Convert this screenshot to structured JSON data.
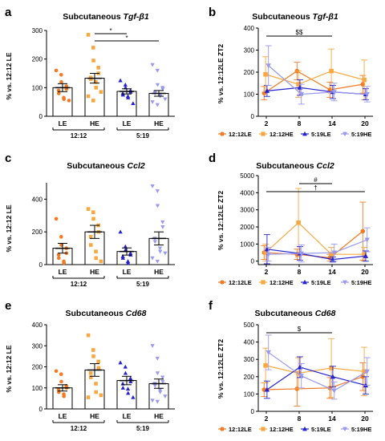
{
  "colors": {
    "LE1212": "#F47920",
    "HE1212": "#F7A840",
    "LE519": "#2323D0",
    "HE519": "#9999F0"
  },
  "panels": [
    {
      "id": "a",
      "letter": "a",
      "title_prefix": "Subcutaneous ",
      "title_gene": "Tgf-β1",
      "ylabel": "% vs. 12:12 LE"
    },
    {
      "id": "b",
      "letter": "b",
      "title_prefix": "Subcutaneous ",
      "title_gene": "Tgf-β1",
      "ylabel": "% vs. 12:12LE ZT2"
    },
    {
      "id": "c",
      "letter": "c",
      "title_prefix": "Subcutaneous ",
      "title_gene": "Ccl2",
      "ylabel": "% vs. 12:12 LE"
    },
    {
      "id": "d",
      "letter": "d",
      "title_prefix": "Subcutaneous ",
      "title_gene": "Ccl2",
      "ylabel": "% vs. 12:12LE ZT2"
    },
    {
      "id": "e",
      "letter": "e",
      "title_prefix": "Subcutaneous ",
      "title_gene": "Cd68",
      "ylabel": "% vs. 12:12 LE"
    },
    {
      "id": "f",
      "letter": "f",
      "title_prefix": "Subcutaneous ",
      "title_gene": "Cd68",
      "ylabel": "% vs. 12:12LE ZT2"
    }
  ],
  "chart_data": [
    {
      "panel": "a",
      "type": "bar",
      "categories": [
        "LE",
        "HE",
        "LE",
        "HE"
      ],
      "groups": [
        "12:12",
        "5:19"
      ],
      "ylim": [
        0,
        300
      ],
      "yticks": [
        0,
        100,
        200,
        300
      ],
      "means": [
        100,
        133,
        87,
        80
      ],
      "sem": [
        14,
        17,
        9,
        10
      ],
      "points": [
        [
          160,
          145,
          120,
          105,
          95,
          90,
          80,
          65,
          60,
          55
        ],
        [
          285,
          240,
          195,
          170,
          150,
          135,
          130,
          120,
          100,
          85,
          70,
          55
        ],
        [
          125,
          110,
          100,
          90,
          85,
          80,
          75,
          70,
          65,
          45
        ],
        [
          180,
          160,
          110,
          100,
          95,
          85,
          80,
          75,
          70,
          60,
          50,
          40
        ]
      ],
      "significance": [
        {
          "from": 1,
          "to": 2,
          "label": "*"
        },
        {
          "from": 1,
          "to": 3,
          "label": "*"
        }
      ]
    },
    {
      "panel": "b",
      "type": "line",
      "x": [
        2,
        8,
        14,
        20
      ],
      "ylim": [
        0,
        400
      ],
      "yticks": [
        0,
        100,
        200,
        300,
        400
      ],
      "series": [
        {
          "name": "12:12LE",
          "values": [
            105,
            205,
            120,
            145
          ],
          "err": [
            30,
            40,
            35,
            40
          ]
        },
        {
          "name": "12:12HE",
          "values": [
            190,
            145,
            205,
            165
          ],
          "err": [
            80,
            60,
            100,
            90
          ]
        },
        {
          "name": "5:19LE",
          "values": [
            115,
            130,
            110,
            100
          ],
          "err": [
            25,
            35,
            30,
            25
          ]
        },
        {
          "name": "5:19HE",
          "values": [
            230,
            100,
            110,
            100
          ],
          "err": [
            90,
            45,
            40,
            35
          ]
        }
      ],
      "significance": [
        {
          "from": 2,
          "to": 14,
          "label": "$$"
        }
      ]
    },
    {
      "panel": "c",
      "type": "bar",
      "categories": [
        "LE",
        "HE",
        "LE",
        "HE"
      ],
      "groups": [
        "12:12",
        "5:19"
      ],
      "ylim": [
        0,
        500
      ],
      "yticks": [
        0,
        200,
        400
      ],
      "means": [
        100,
        200,
        80,
        160
      ],
      "sem": [
        30,
        40,
        22,
        40
      ],
      "points": [
        [
          280,
          170,
          120,
          100,
          70,
          60,
          40,
          20,
          10
        ],
        [
          340,
          320,
          280,
          240,
          200,
          170,
          120,
          80,
          40,
          20
        ],
        [
          200,
          110,
          90,
          70,
          60,
          50,
          40,
          20,
          10
        ],
        [
          480,
          450,
          360,
          260,
          230,
          160,
          140,
          100,
          80,
          70,
          40,
          20
        ]
      ],
      "significance": []
    },
    {
      "panel": "d",
      "type": "line",
      "x": [
        2,
        8,
        14,
        20
      ],
      "ylim": [
        -200,
        5000
      ],
      "yticks": [
        0,
        1000,
        2000,
        3000,
        4000,
        5000
      ],
      "series": [
        {
          "name": "12:12LE",
          "values": [
            500,
            400,
            200,
            1750
          ],
          "err": [
            400,
            300,
            200,
            1700
          ]
        },
        {
          "name": "12:12HE",
          "values": [
            500,
            2250,
            400,
            400
          ],
          "err": [
            500,
            2000,
            400,
            400
          ]
        },
        {
          "name": "5:19LE",
          "values": [
            700,
            450,
            100,
            300
          ],
          "err": [
            850,
            400,
            150,
            300
          ]
        },
        {
          "name": "5:19HE",
          "values": [
            400,
            450,
            500,
            1250
          ],
          "err": [
            400,
            500,
            500,
            700
          ]
        }
      ],
      "significance": [
        {
          "from": 8,
          "to": 14,
          "label": "#"
        },
        {
          "from": 2,
          "to": 20,
          "label": "†"
        }
      ]
    },
    {
      "panel": "e",
      "type": "bar",
      "categories": [
        "LE",
        "HE",
        "LE",
        "HE"
      ],
      "groups": [
        "12:12",
        "5:19"
      ],
      "ylim": [
        0,
        400
      ],
      "yticks": [
        0,
        100,
        200,
        300,
        400
      ],
      "means": [
        100,
        185,
        135,
        120
      ],
      "sem": [
        15,
        30,
        20,
        22
      ],
      "points": [
        [
          180,
          165,
          130,
          110,
          100,
          90,
          80,
          70,
          60
        ],
        [
          350,
          280,
          250,
          225,
          195,
          170,
          150,
          120,
          80,
          65,
          55
        ],
        [
          220,
          200,
          170,
          145,
          130,
          120,
          100,
          95,
          75,
          55
        ],
        [
          300,
          240,
          170,
          150,
          130,
          120,
          110,
          90,
          80,
          60,
          40,
          35
        ]
      ],
      "significance": []
    },
    {
      "panel": "f",
      "type": "line",
      "x": [
        2,
        8,
        14,
        20
      ],
      "ylim": [
        0,
        500
      ],
      "yticks": [
        0,
        100,
        200,
        300,
        400,
        500
      ],
      "series": [
        {
          "name": "12:12LE",
          "values": [
            125,
            130,
            135,
            200
          ],
          "err": [
            40,
            100,
            60,
            80
          ]
        },
        {
          "name": "12:12HE",
          "values": [
            265,
            220,
            250,
            230
          ],
          "err": [
            100,
            90,
            170,
            140
          ]
        },
        {
          "name": "5:19LE",
          "values": [
            125,
            255,
            200,
            150
          ],
          "err": [
            50,
            60,
            60,
            50
          ]
        },
        {
          "name": "5:19HE",
          "values": [
            340,
            205,
            120,
            230
          ],
          "err": [
            100,
            70,
            50,
            80
          ]
        }
      ],
      "significance": [
        {
          "from": 2,
          "to": 14,
          "label": "$"
        }
      ]
    }
  ]
}
